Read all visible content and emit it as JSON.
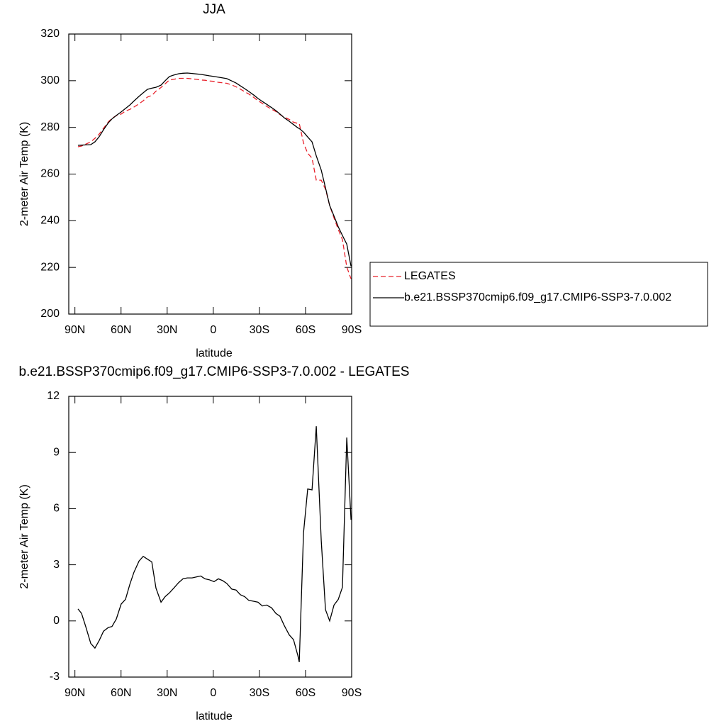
{
  "chart_data": [
    {
      "type": "line",
      "title": "JJA",
      "x_label": "latitude",
      "y_label": "2-meter Air Temp (K)",
      "x": [
        88,
        85.7,
        83,
        79.7,
        77,
        74.2,
        71.4,
        68.2,
        65.9,
        63.1,
        59.9,
        57.1,
        54.3,
        51.6,
        48.3,
        45.6,
        42.8,
        40.0,
        37.3,
        34.0,
        31.3,
        28.5,
        25.7,
        22.5,
        19.7,
        16.9,
        13.8,
        11.0,
        8.2,
        5.4,
        2.7,
        -0.5,
        -3.3,
        -6.1,
        -8.8,
        -12.0,
        -14.8,
        -17.6,
        -20.4,
        -23.1,
        -26.4,
        -29.1,
        -31.9,
        -34.7,
        -37.9,
        -40.7,
        -43.4,
        -46.2,
        -49.4,
        -52.2,
        -55.0,
        -55.9,
        -58.7,
        -61.4,
        -64.2,
        -67.0,
        -70.2,
        -73.0,
        -75.7,
        -78.5,
        -81.3,
        -84.0,
        -86.8,
        -89.6
      ],
      "xlim": [
        94,
        -90
      ],
      "xticks": [
        {
          "value": 90,
          "label": "90N"
        },
        {
          "value": 60,
          "label": "60N"
        },
        {
          "value": 30,
          "label": "30N"
        },
        0,
        {
          "value": -30,
          "label": "30S"
        },
        {
          "value": -60,
          "label": "60S"
        },
        {
          "value": -90,
          "label": "90S"
        }
      ],
      "ylim": [
        200,
        320
      ],
      "yticks": [
        200,
        220,
        240,
        260,
        280,
        300,
        320
      ],
      "series": [
        {
          "name": "LEGATES",
          "color": "#e8202a",
          "dashed": true,
          "values": [
            271.7,
            272.0,
            272.8,
            273.8,
            275.3,
            277.1,
            279.6,
            282.4,
            283.9,
            285.0,
            285.7,
            287.0,
            287.7,
            288.7,
            290.1,
            291.4,
            293.0,
            293.7,
            295.5,
            297.1,
            298.7,
            300.3,
            300.6,
            301.0,
            301.0,
            301.0,
            300.8,
            300.6,
            300.3,
            300.2,
            299.9,
            299.7,
            299.3,
            299.1,
            298.9,
            298.2,
            297.4,
            296.4,
            295.3,
            294.3,
            292.8,
            291.4,
            290.3,
            289.0,
            287.8,
            286.8,
            285.5,
            284.4,
            283.4,
            282.2,
            281.7,
            281.7,
            273.3,
            268.9,
            266.8,
            257.4,
            257.4,
            253.5,
            246.5,
            241.2,
            236.3,
            231.9,
            220.2,
            215.1
          ]
        },
        {
          "name": "b.e21.BSSP370cmip6.f09_g17.CMIP6-SSP3-7.0.002",
          "color": "#000000",
          "dashed": false,
          "values": [
            272.3,
            272.4,
            272.5,
            272.6,
            273.8,
            276.0,
            279.0,
            282.0,
            283.6,
            285.1,
            286.6,
            288.1,
            289.6,
            291.3,
            293.3,
            294.8,
            296.3,
            296.8,
            297.2,
            298.1,
            300.0,
            301.8,
            302.4,
            303.0,
            303.2,
            303.3,
            303.1,
            302.9,
            302.7,
            302.4,
            302.1,
            301.8,
            301.5,
            301.2,
            300.9,
            299.9,
            299.0,
            297.8,
            296.6,
            295.4,
            293.8,
            292.4,
            291.1,
            289.9,
            288.5,
            287.2,
            285.7,
            284.1,
            282.6,
            281.2,
            279.8,
            279.5,
            278.0,
            275.9,
            273.8,
            267.8,
            261.7,
            254.1,
            246.5,
            242.0,
            237.4,
            233.7,
            230.0,
            220.5
          ]
        }
      ]
    },
    {
      "type": "line",
      "title": "b.e21.BSSP370cmip6.f09_g17.CMIP6-SSP3-7.0.002 - LEGATES",
      "x_label": "latitude",
      "y_label": "2-meter Air Temp (K)",
      "x": [
        88,
        85.7,
        83,
        79.7,
        77,
        74.2,
        71.4,
        68.2,
        65.9,
        63.1,
        59.9,
        57.1,
        54.3,
        51.6,
        48.3,
        45.6,
        42.8,
        40.0,
        37.3,
        34.0,
        31.3,
        28.5,
        25.7,
        22.5,
        19.7,
        16.9,
        13.8,
        11.0,
        8.2,
        5.4,
        2.7,
        -0.5,
        -3.3,
        -6.1,
        -8.8,
        -12.0,
        -14.8,
        -17.6,
        -20.4,
        -23.1,
        -26.4,
        -29.1,
        -31.9,
        -34.7,
        -37.9,
        -40.7,
        -43.4,
        -46.2,
        -49.4,
        -52.2,
        -55.0,
        -55.9,
        -58.7,
        -61.4,
        -64.2,
        -67.0,
        -70.2,
        -73.0,
        -75.7,
        -78.5,
        -81.3,
        -84.0,
        -86.8,
        -89.6
      ],
      "xlim": [
        94,
        -90
      ],
      "xticks": [
        {
          "value": 90,
          "label": "90N"
        },
        {
          "value": 60,
          "label": "60N"
        },
        {
          "value": 30,
          "label": "30N"
        },
        0,
        {
          "value": -30,
          "label": "30S"
        },
        {
          "value": -60,
          "label": "60S"
        },
        {
          "value": -90,
          "label": "90S"
        }
      ],
      "ylim": [
        -3,
        12
      ],
      "yticks": [
        -3,
        0,
        3,
        6,
        9,
        12
      ],
      "series": [
        {
          "color": "#000000",
          "dashed": false,
          "values": [
            0.64,
            0.4,
            -0.3,
            -1.2,
            -1.45,
            -1.05,
            -0.55,
            -0.35,
            -0.3,
            0.1,
            0.9,
            1.15,
            1.95,
            2.6,
            3.2,
            3.45,
            3.3,
            3.15,
            1.75,
            1.0,
            1.3,
            1.5,
            1.75,
            2.05,
            2.25,
            2.3,
            2.3,
            2.35,
            2.4,
            2.25,
            2.2,
            2.1,
            2.25,
            2.15,
            2.0,
            1.7,
            1.65,
            1.4,
            1.3,
            1.1,
            1.05,
            1.0,
            0.8,
            0.85,
            0.7,
            0.4,
            0.25,
            -0.25,
            -0.75,
            -1.0,
            -1.85,
            -2.2,
            4.7,
            7.05,
            7.0,
            10.4,
            4.3,
            0.6,
            0.0,
            0.85,
            1.15,
            1.8,
            9.8,
            5.4
          ]
        }
      ]
    }
  ]
}
